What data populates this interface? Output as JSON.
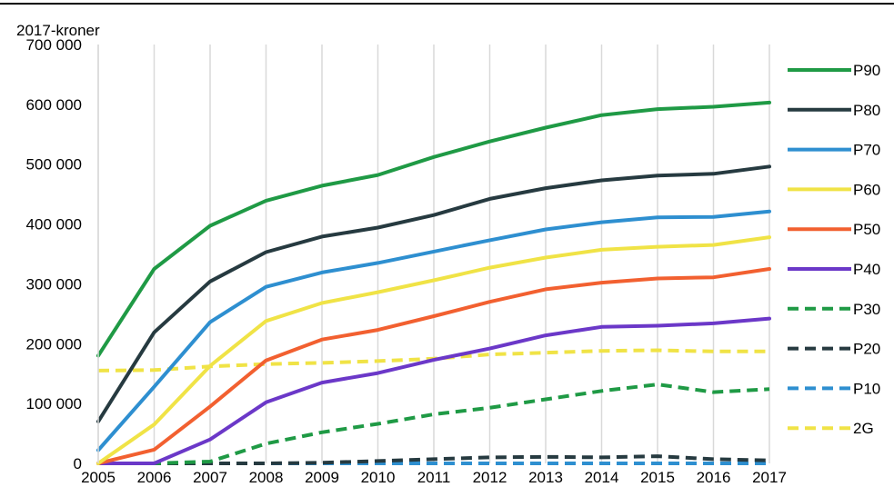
{
  "chart_data": {
    "type": "line",
    "unit_label": "2017-kroner",
    "x": [
      "2005",
      "2006",
      "2007",
      "2008",
      "2009",
      "2010",
      "2011",
      "2012",
      "2013",
      "2014",
      "2015",
      "2016",
      "2017"
    ],
    "ylim": [
      0,
      700000
    ],
    "yticks": [
      0,
      100000,
      200000,
      300000,
      400000,
      500000,
      600000,
      700000
    ],
    "ytick_labels": [
      "0",
      "100 000",
      "200 000",
      "300 000",
      "400 000",
      "500 000",
      "600 000",
      "700 000"
    ],
    "grid": "vertical",
    "legend_position": "right",
    "series": [
      {
        "name": "P90",
        "color": "#1f9a45",
        "dash": "solid",
        "values": [
          180000,
          325000,
          397000,
          439000,
          464000,
          482000,
          512000,
          538000,
          561000,
          582000,
          592000,
          596000,
          603000
        ]
      },
      {
        "name": "P80",
        "color": "#263a40",
        "dash": "solid",
        "values": [
          70000,
          219000,
          304000,
          353000,
          379000,
          394000,
          415000,
          442000,
          460000,
          473000,
          481000,
          484000,
          496000
        ]
      },
      {
        "name": "P70",
        "color": "#2e8fd0",
        "dash": "solid",
        "values": [
          22000,
          128000,
          236000,
          295000,
          319000,
          335000,
          354000,
          373000,
          391000,
          403000,
          411000,
          412000,
          421000
        ]
      },
      {
        "name": "P60",
        "color": "#f0e346",
        "dash": "solid",
        "values": [
          0,
          65000,
          163000,
          238000,
          268000,
          286000,
          306000,
          327000,
          344000,
          357000,
          362000,
          365000,
          378000
        ]
      },
      {
        "name": "P50",
        "color": "#f26030",
        "dash": "solid",
        "values": [
          0,
          23000,
          95000,
          172000,
          207000,
          223000,
          246000,
          270000,
          291000,
          302000,
          309000,
          311000,
          325000
        ]
      },
      {
        "name": "P40",
        "color": "#6b38c8",
        "dash": "solid",
        "values": [
          0,
          0,
          40000,
          102000,
          135000,
          151000,
          173000,
          192000,
          214000,
          228000,
          230000,
          234000,
          242000
        ]
      },
      {
        "name": "P30",
        "color": "#1f9a45",
        "dash": "dashed",
        "values": [
          0,
          0,
          3000,
          33000,
          52000,
          66000,
          82000,
          93000,
          107000,
          121000,
          132000,
          119000,
          124000
        ]
      },
      {
        "name": "P20",
        "color": "#263a40",
        "dash": "dashed",
        "values": [
          0,
          0,
          0,
          0,
          1000,
          4000,
          7000,
          10000,
          11000,
          10000,
          12000,
          7000,
          5000
        ]
      },
      {
        "name": "P10",
        "color": "#2e8fd0",
        "dash": "dashed",
        "values": [
          0,
          0,
          0,
          0,
          0,
          0,
          0,
          0,
          0,
          0,
          0,
          0,
          0
        ]
      },
      {
        "name": "2G",
        "color": "#f0e346",
        "dash": "dashed",
        "values": [
          155000,
          156000,
          162000,
          166000,
          168000,
          171000,
          175000,
          182000,
          185000,
          188000,
          189000,
          187000,
          187000
        ]
      }
    ]
  }
}
